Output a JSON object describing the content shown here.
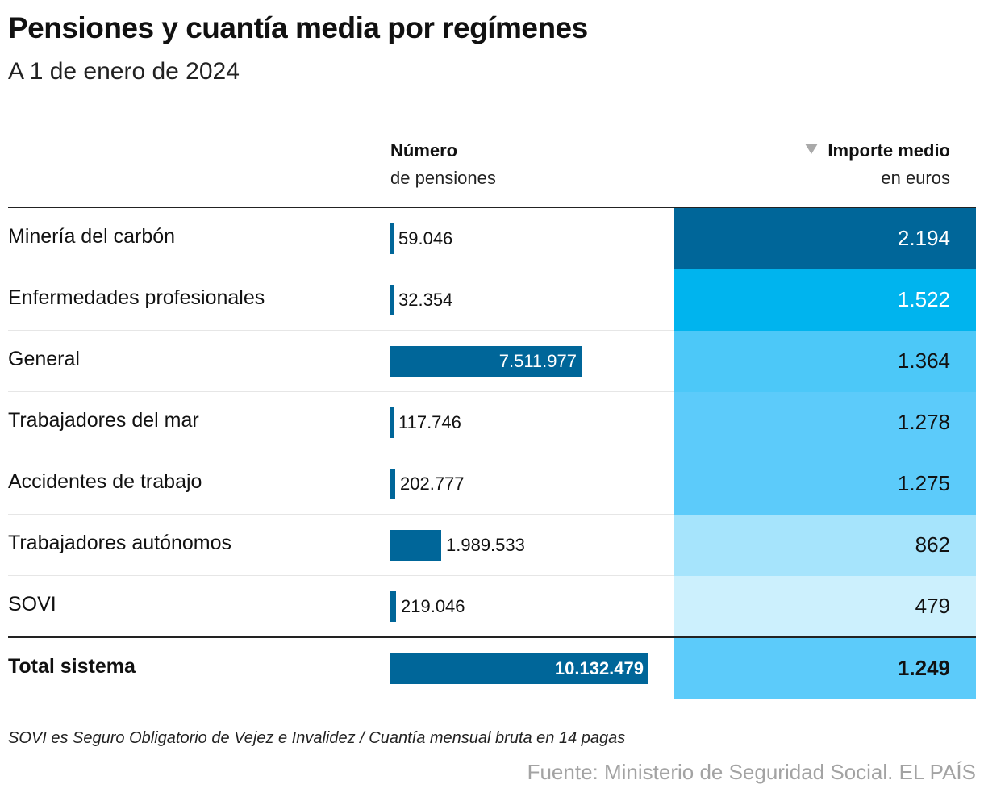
{
  "title": "Pensiones y cuantía media por regímenes",
  "subtitle": "A 1 de enero de 2024",
  "columns": {
    "number_title": "Número",
    "number_sub": "de pensiones",
    "amount_title": "Importe medio",
    "amount_sub": "en euros",
    "sort_icon": "triangle-down-icon"
  },
  "chart_data": {
    "type": "table",
    "columns": [
      "Número de pensiones",
      "Importe medio en euros"
    ],
    "rows": [
      {
        "label": "Minería del carbón",
        "count": 59046,
        "count_label": "59.046",
        "amount": 2194,
        "amount_label": "2.194",
        "color": "#006699"
      },
      {
        "label": "Enfermedades profesionales",
        "count": 32354,
        "count_label": "32.354",
        "amount": 1522,
        "amount_label": "1.522",
        "color": "#00b4ee"
      },
      {
        "label": "General",
        "count": 7511977,
        "count_label": "7.511.977",
        "amount": 1364,
        "amount_label": "1.364",
        "color": "#4cc8f8"
      },
      {
        "label": "Trabajadores del mar",
        "count": 117746,
        "count_label": "117.746",
        "amount": 1278,
        "amount_label": "1.278",
        "color": "#5ccbfa"
      },
      {
        "label": "Accidentes de trabajo",
        "count": 202777,
        "count_label": "202.777",
        "amount": 1275,
        "amount_label": "1.275",
        "color": "#5ccbfa"
      },
      {
        "label": "Trabajadores autónomos",
        "count": 1989533,
        "count_label": "1.989.533",
        "amount": 862,
        "amount_label": "862",
        "color": "#a6e4fc"
      },
      {
        "label": "SOVI",
        "count": 219046,
        "count_label": "219.046",
        "amount": 479,
        "amount_label": "479",
        "color": "#ccf0fd"
      }
    ],
    "total": {
      "label": "Total sistema",
      "count": 10132479,
      "count_label": "10.132.479",
      "amount": 1249,
      "amount_label": "1.249",
      "color": "#5ccbfa"
    },
    "bar_color": "#006699"
  },
  "footnote": "SOVI es Seguro Obligatorio de Vejez e Invalidez / Cuantía mensual bruta en 14 pagas",
  "source": "Fuente: Ministerio de Seguridad Social. EL PAÍS"
}
